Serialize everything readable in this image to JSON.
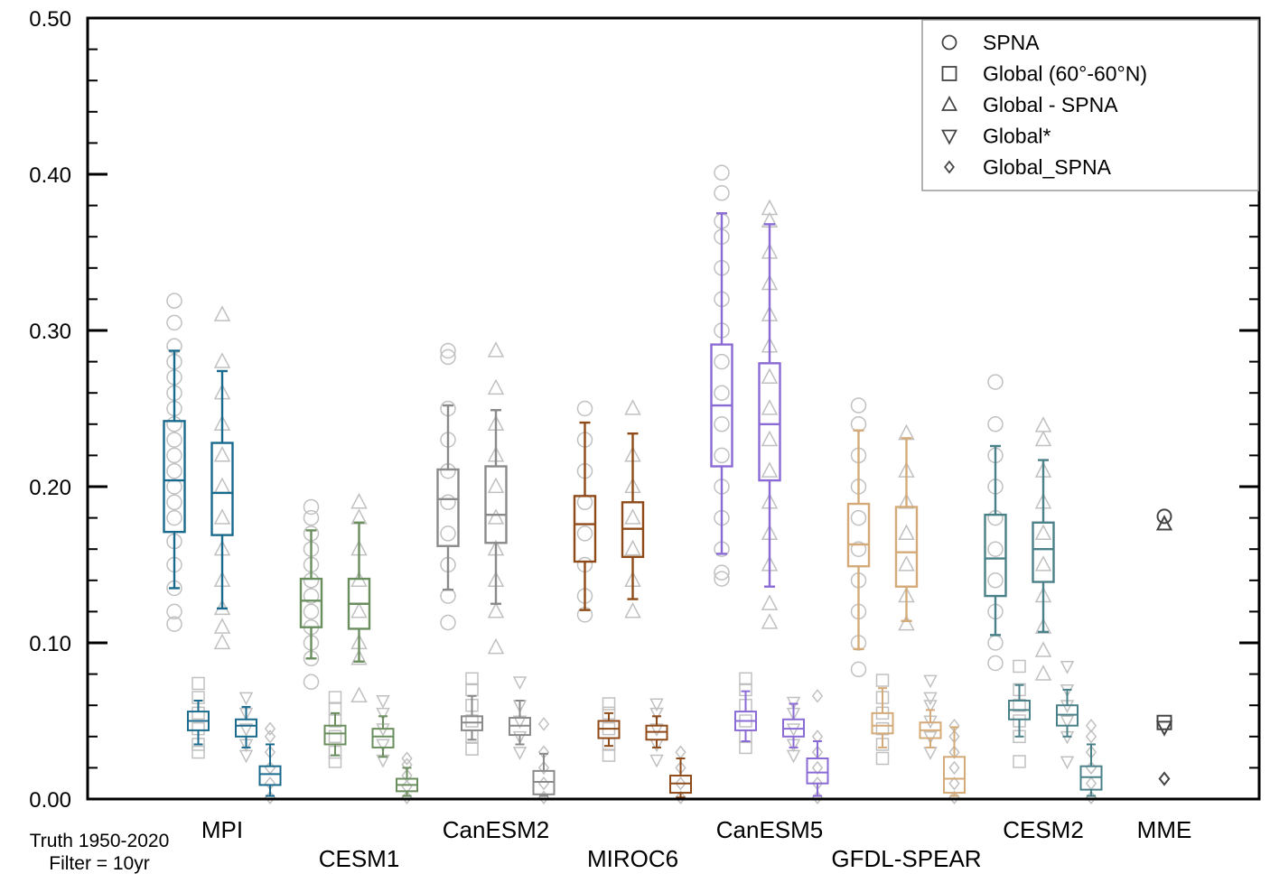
{
  "chart_data": {
    "type": "box",
    "ylim": [
      0,
      0.5
    ],
    "yticks": [
      "0.00",
      "0.10",
      "0.20",
      "0.30",
      "0.40",
      "0.50"
    ],
    "grid": false,
    "legend_position": "top-right",
    "legend": [
      {
        "marker": "circle",
        "label": "SPNA"
      },
      {
        "marker": "square",
        "label": "Global (60°-60°N)"
      },
      {
        "marker": "triangle-up",
        "label": "Global - SPNA"
      },
      {
        "marker": "triangle-down",
        "label": "Global*"
      },
      {
        "marker": "diamond",
        "label": "Global_SPNA"
      }
    ],
    "note": [
      "Truth 1950-2020",
      "Filter = 10yr"
    ],
    "models": [
      {
        "name": "MPI",
        "color": "#1a6a8e",
        "boxes": [
          {
            "metric": "SPNA",
            "whisker_low": 0.135,
            "q1": 0.171,
            "median": 0.204,
            "q3": 0.242,
            "whisker_high": 0.287,
            "samples": [
              0.112,
              0.12,
              0.135,
              0.15,
              0.165,
              0.18,
              0.19,
              0.2,
              0.21,
              0.22,
              0.23,
              0.24,
              0.25,
              0.26,
              0.27,
              0.28,
              0.29,
              0.305,
              0.319
            ]
          },
          {
            "metric": "Global",
            "whisker_low": 0.035,
            "q1": 0.044,
            "median": 0.05,
            "q3": 0.056,
            "whisker_high": 0.063,
            "samples": [
              0.03,
              0.035,
              0.045,
              0.055,
              0.065,
              0.074
            ]
          },
          {
            "metric": "Global - SPNA",
            "whisker_low": 0.122,
            "q1": 0.169,
            "median": 0.196,
            "q3": 0.228,
            "whisker_high": 0.274,
            "samples": [
              0.1,
              0.11,
              0.122,
              0.14,
              0.16,
              0.18,
              0.2,
              0.22,
              0.24,
              0.26,
              0.28,
              0.31
            ]
          },
          {
            "metric": "Global*",
            "whisker_low": 0.033,
            "q1": 0.04,
            "median": 0.047,
            "q3": 0.051,
            "whisker_high": 0.059,
            "samples": [
              0.028,
              0.035,
              0.045,
              0.055,
              0.065
            ]
          },
          {
            "metric": "Global_SPNA",
            "whisker_low": 0.002,
            "q1": 0.009,
            "median": 0.016,
            "q3": 0.021,
            "whisker_high": 0.035,
            "samples": [
              0.001,
              0.01,
              0.02,
              0.03,
              0.04,
              0.045
            ]
          }
        ]
      },
      {
        "name": "CESM1",
        "color": "#6a8e5e",
        "boxes": [
          {
            "metric": "SPNA",
            "whisker_low": 0.09,
            "q1": 0.11,
            "median": 0.127,
            "q3": 0.141,
            "whisker_high": 0.172,
            "samples": [
              0.075,
              0.09,
              0.1,
              0.11,
              0.12,
              0.13,
              0.14,
              0.15,
              0.16,
              0.17,
              0.18,
              0.187
            ]
          },
          {
            "metric": "Global",
            "whisker_low": 0.028,
            "q1": 0.035,
            "median": 0.042,
            "q3": 0.047,
            "whisker_high": 0.055,
            "samples": [
              0.024,
              0.03,
              0.04,
              0.05,
              0.058,
              0.065
            ]
          },
          {
            "metric": "Global - SPNA",
            "whisker_low": 0.088,
            "q1": 0.109,
            "median": 0.125,
            "q3": 0.141,
            "whisker_high": 0.177,
            "samples": [
              0.066,
              0.09,
              0.1,
              0.12,
              0.14,
              0.16,
              0.18,
              0.19
            ]
          },
          {
            "metric": "Global*",
            "whisker_low": 0.027,
            "q1": 0.033,
            "median": 0.04,
            "q3": 0.045,
            "whisker_high": 0.053,
            "samples": [
              0.025,
              0.035,
              0.045,
              0.055,
              0.063
            ]
          },
          {
            "metric": "Global_SPNA",
            "whisker_low": 0.002,
            "q1": 0.005,
            "median": 0.009,
            "q3": 0.013,
            "whisker_high": 0.02,
            "samples": [
              0.001,
              0.008,
              0.015,
              0.022,
              0.026
            ]
          }
        ]
      },
      {
        "name": "CanESM2",
        "color": "#8a8a8a",
        "boxes": [
          {
            "metric": "SPNA",
            "whisker_low": 0.134,
            "q1": 0.162,
            "median": 0.192,
            "q3": 0.211,
            "whisker_high": 0.252,
            "samples": [
              0.113,
              0.13,
              0.15,
              0.17,
              0.19,
              0.21,
              0.23,
              0.25,
              0.283,
              0.287
            ]
          },
          {
            "metric": "Global",
            "whisker_low": 0.038,
            "q1": 0.044,
            "median": 0.049,
            "q3": 0.053,
            "whisker_high": 0.066,
            "samples": [
              0.032,
              0.04,
              0.05,
              0.06,
              0.07,
              0.077
            ]
          },
          {
            "metric": "Global - SPNA",
            "whisker_low": 0.125,
            "q1": 0.164,
            "median": 0.182,
            "q3": 0.213,
            "whisker_high": 0.249,
            "samples": [
              0.097,
              0.12,
              0.14,
              0.16,
              0.18,
              0.2,
              0.22,
              0.24,
              0.263,
              0.287
            ]
          },
          {
            "metric": "Global*",
            "whisker_low": 0.035,
            "q1": 0.041,
            "median": 0.047,
            "q3": 0.052,
            "whisker_high": 0.063,
            "samples": [
              0.03,
              0.04,
              0.05,
              0.06,
              0.075
            ]
          },
          {
            "metric": "Global_SPNA",
            "whisker_low": 0.002,
            "q1": 0.003,
            "median": 0.011,
            "q3": 0.018,
            "whisker_high": 0.029,
            "samples": [
              0.001,
              0.01,
              0.02,
              0.03,
              0.048
            ]
          }
        ]
      },
      {
        "name": "MIROC6",
        "color": "#8e4a18",
        "boxes": [
          {
            "metric": "SPNA",
            "whisker_low": 0.121,
            "q1": 0.152,
            "median": 0.176,
            "q3": 0.194,
            "whisker_high": 0.241,
            "samples": [
              0.118,
              0.13,
              0.15,
              0.17,
              0.19,
              0.21,
              0.23,
              0.25
            ]
          },
          {
            "metric": "Global",
            "whisker_low": 0.034,
            "q1": 0.039,
            "median": 0.045,
            "q3": 0.05,
            "whisker_high": 0.055,
            "samples": [
              0.028,
              0.035,
              0.045,
              0.055,
              0.061
            ]
          },
          {
            "metric": "Global - SPNA",
            "whisker_low": 0.128,
            "q1": 0.155,
            "median": 0.173,
            "q3": 0.19,
            "whisker_high": 0.234,
            "samples": [
              0.12,
              0.14,
              0.16,
              0.18,
              0.2,
              0.22,
              0.25
            ]
          },
          {
            "metric": "Global*",
            "whisker_low": 0.033,
            "q1": 0.038,
            "median": 0.043,
            "q3": 0.047,
            "whisker_high": 0.053,
            "samples": [
              0.025,
              0.035,
              0.045,
              0.055,
              0.061
            ]
          },
          {
            "metric": "Global_SPNA",
            "whisker_low": 0.001,
            "q1": 0.004,
            "median": 0.01,
            "q3": 0.015,
            "whisker_high": 0.026,
            "samples": [
              0.001,
              0.01,
              0.02,
              0.03
            ]
          }
        ]
      },
      {
        "name": "CanESM5",
        "color": "#8a6ad4",
        "boxes": [
          {
            "metric": "SPNA",
            "whisker_low": 0.157,
            "q1": 0.213,
            "median": 0.252,
            "q3": 0.291,
            "whisker_high": 0.375,
            "samples": [
              0.141,
              0.145,
              0.16,
              0.18,
              0.2,
              0.22,
              0.24,
              0.26,
              0.28,
              0.3,
              0.32,
              0.34,
              0.36,
              0.37,
              0.388,
              0.401
            ]
          },
          {
            "metric": "Global",
            "whisker_low": 0.037,
            "q1": 0.044,
            "median": 0.05,
            "q3": 0.056,
            "whisker_high": 0.069,
            "samples": [
              0.033,
              0.04,
              0.05,
              0.06,
              0.07,
              0.077
            ]
          },
          {
            "metric": "Global - SPNA",
            "whisker_low": 0.136,
            "q1": 0.204,
            "median": 0.24,
            "q3": 0.279,
            "whisker_high": 0.368,
            "samples": [
              0.113,
              0.125,
              0.15,
              0.17,
              0.19,
              0.21,
              0.23,
              0.25,
              0.27,
              0.29,
              0.31,
              0.33,
              0.35,
              0.37,
              0.378
            ]
          },
          {
            "metric": "Global*",
            "whisker_low": 0.033,
            "q1": 0.04,
            "median": 0.045,
            "q3": 0.051,
            "whisker_high": 0.061,
            "samples": [
              0.028,
              0.035,
              0.045,
              0.055,
              0.062
            ]
          },
          {
            "metric": "Global_SPNA",
            "whisker_low": 0.002,
            "q1": 0.01,
            "median": 0.017,
            "q3": 0.026,
            "whisker_high": 0.037,
            "samples": [
              0.001,
              0.01,
              0.02,
              0.03,
              0.04,
              0.066
            ]
          }
        ]
      },
      {
        "name": "GFDL-SPEAR",
        "color": "#d4aa78",
        "boxes": [
          {
            "metric": "SPNA",
            "whisker_low": 0.096,
            "q1": 0.149,
            "median": 0.163,
            "q3": 0.189,
            "whisker_high": 0.236,
            "samples": [
              0.083,
              0.1,
              0.12,
              0.14,
              0.16,
              0.18,
              0.2,
              0.22,
              0.24,
              0.252
            ]
          },
          {
            "metric": "Global",
            "whisker_low": 0.033,
            "q1": 0.042,
            "median": 0.047,
            "q3": 0.055,
            "whisker_high": 0.071,
            "samples": [
              0.026,
              0.035,
              0.045,
              0.055,
              0.065,
              0.076
            ]
          },
          {
            "metric": "Global - SPNA",
            "whisker_low": 0.114,
            "q1": 0.136,
            "median": 0.158,
            "q3": 0.187,
            "whisker_high": 0.231,
            "samples": [
              0.112,
              0.13,
              0.15,
              0.17,
              0.19,
              0.21,
              0.234
            ]
          },
          {
            "metric": "Global*",
            "whisker_low": 0.033,
            "q1": 0.039,
            "median": 0.044,
            "q3": 0.049,
            "whisker_high": 0.057,
            "samples": [
              0.03,
              0.04,
              0.05,
              0.06,
              0.065,
              0.076
            ]
          },
          {
            "metric": "Global_SPNA",
            "whisker_low": 0.002,
            "q1": 0.004,
            "median": 0.013,
            "q3": 0.027,
            "whisker_high": 0.046,
            "samples": [
              0.001,
              0.01,
              0.02,
              0.03,
              0.04,
              0.047
            ]
          }
        ]
      },
      {
        "name": "CESM2",
        "color": "#4a8088",
        "boxes": [
          {
            "metric": "SPNA",
            "whisker_low": 0.105,
            "q1": 0.13,
            "median": 0.154,
            "q3": 0.182,
            "whisker_high": 0.226,
            "samples": [
              0.087,
              0.1,
              0.12,
              0.14,
              0.16,
              0.18,
              0.2,
              0.22,
              0.24,
              0.267
            ]
          },
          {
            "metric": "Global",
            "whisker_low": 0.04,
            "q1": 0.051,
            "median": 0.057,
            "q3": 0.063,
            "whisker_high": 0.073,
            "samples": [
              0.024,
              0.04,
              0.05,
              0.06,
              0.07,
              0.085
            ]
          },
          {
            "metric": "Global - SPNA",
            "whisker_low": 0.107,
            "q1": 0.139,
            "median": 0.16,
            "q3": 0.177,
            "whisker_high": 0.217,
            "samples": [
              0.08,
              0.095,
              0.11,
              0.13,
              0.15,
              0.17,
              0.19,
              0.21,
              0.23,
              0.239
            ]
          },
          {
            "metric": "Global*",
            "whisker_low": 0.04,
            "q1": 0.047,
            "median": 0.054,
            "q3": 0.06,
            "whisker_high": 0.07,
            "samples": [
              0.024,
              0.04,
              0.05,
              0.06,
              0.07,
              0.085
            ]
          },
          {
            "metric": "Global_SPNA",
            "whisker_low": 0.002,
            "q1": 0.006,
            "median": 0.014,
            "q3": 0.021,
            "whisker_high": 0.035,
            "samples": [
              0.001,
              0.01,
              0.02,
              0.03,
              0.04,
              0.047
            ]
          }
        ]
      },
      {
        "name": "MME",
        "color": "#444444",
        "points": [
          {
            "metric": "SPNA",
            "value": 0.181
          },
          {
            "metric": "Global - SPNA",
            "value": 0.176
          },
          {
            "metric": "Global",
            "value": 0.049
          },
          {
            "metric": "Global*",
            "value": 0.046
          },
          {
            "metric": "Global_SPNA",
            "value": 0.013
          }
        ]
      }
    ]
  }
}
